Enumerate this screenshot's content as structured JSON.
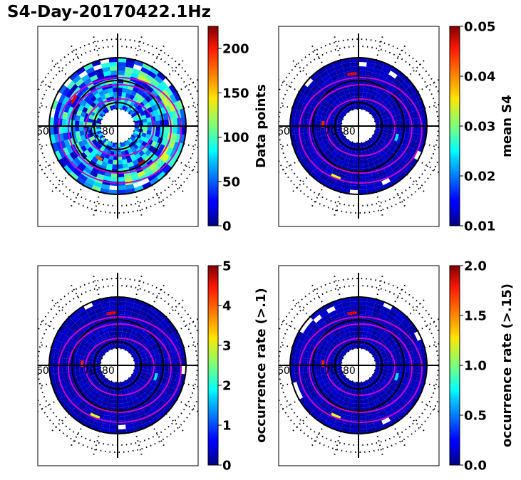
{
  "title": "S4-Day-20170422.1Hz",
  "chart_data": [
    {
      "type": "heatmap",
      "projection": "polar",
      "panel": "top-left",
      "colorbar": {
        "label": "Data points",
        "range": [
          0,
          225
        ],
        "ticks": [
          0,
          50,
          100,
          150,
          200
        ],
        "tick_labels": [
          "0",
          "50",
          "100",
          "150",
          "200"
        ]
      },
      "polar_labels": [
        "60",
        "70",
        "80"
      ],
      "data_level": "mixed",
      "colormap": "jet"
    },
    {
      "type": "heatmap",
      "projection": "polar",
      "panel": "top-right",
      "colorbar": {
        "label": "mean S4",
        "range": [
          0.01,
          0.05
        ],
        "ticks": [
          0.01,
          0.02,
          0.03,
          0.04,
          0.05
        ],
        "tick_labels": [
          "0.01",
          "0.02",
          "0.03",
          "0.04",
          "0.05"
        ]
      },
      "polar_labels": [
        "60",
        "70",
        "80"
      ],
      "data_level": "low",
      "colormap": "jet"
    },
    {
      "type": "heatmap",
      "projection": "polar",
      "panel": "bottom-left",
      "colorbar": {
        "label": "occurrence rate (>.1)",
        "range": [
          0,
          5
        ],
        "ticks": [
          0,
          1,
          2,
          3,
          4,
          5
        ],
        "tick_labels": [
          "0",
          "1",
          "2",
          "3",
          "4",
          "5"
        ]
      },
      "polar_labels": [
        "60",
        "70",
        "80"
      ],
      "data_level": "low",
      "colormap": "jet"
    },
    {
      "type": "heatmap",
      "projection": "polar",
      "panel": "bottom-right",
      "colorbar": {
        "label": "occurrence rate (>.15)",
        "range": [
          0.0,
          2.0
        ],
        "ticks": [
          0.0,
          0.5,
          1.0,
          1.5,
          2.0
        ],
        "tick_labels": [
          "0.0",
          "0.5",
          "1.0",
          "1.5",
          "2.0"
        ]
      },
      "polar_labels": [
        "60",
        "70",
        "80"
      ],
      "data_level": "low",
      "colormap": "jet"
    }
  ]
}
